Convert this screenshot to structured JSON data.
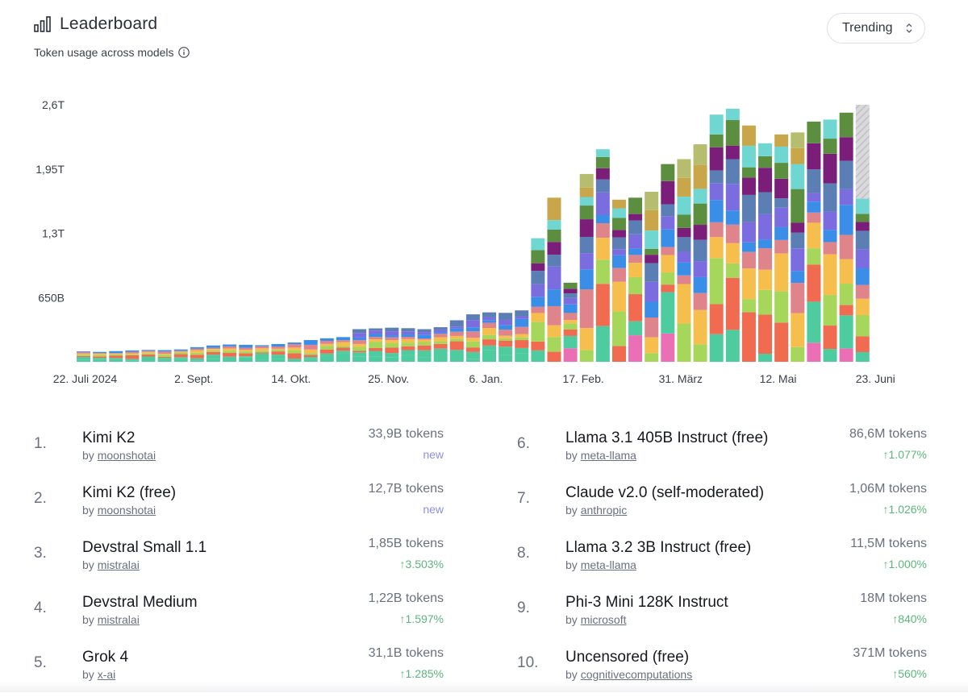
{
  "header": {
    "title": "Leaderboard",
    "subtitle": "Token usage across models",
    "icon": "bar-chart-icon",
    "info_icon": "info-icon"
  },
  "sort_select": {
    "value": "Trending"
  },
  "chart_data": {
    "type": "bar",
    "stacked": true,
    "y_tick_labels": [
      "650B",
      "1,3T",
      "1,95T",
      "2,6T"
    ],
    "y_ticks": [
      650,
      1300,
      1950,
      2600
    ],
    "ylim": [
      0,
      2600
    ],
    "value_unit": "B tokens",
    "x_tick_labels": [
      "22. Juli 2024",
      "2. Sept.",
      "14. Okt.",
      "25. Nov.",
      "6. Jan.",
      "17. Feb.",
      "31. März",
      "12. Mai",
      "23. Juni"
    ],
    "grid": false,
    "weekly_totals": [
      105,
      100,
      108,
      115,
      120,
      118,
      125,
      148,
      165,
      175,
      172,
      168,
      180,
      195,
      220,
      238,
      250,
      330,
      338,
      345,
      340,
      330,
      350,
      420,
      480,
      500,
      495,
      520,
      1250,
      1660,
      800,
      1900,
      2150,
      1640,
      1660,
      1720,
      2000,
      2050,
      2200,
      2500,
      2560,
      2390,
      2210,
      2300,
      2320,
      2430,
      2450,
      2520,
      2600
    ],
    "palette": [
      "#eb6fb4",
      "#4ecb9f",
      "#f06b50",
      "#a6d65a",
      "#f6bf4d",
      "#e0848b",
      "#3b8ee8",
      "#7b6de0",
      "#5b7fb4",
      "#7a1e7a",
      "#5b8f3f",
      "#6fd6d1",
      "#c9a64a",
      "#b6bd6f",
      "#e64c2a"
    ],
    "partial_last_week": true
  },
  "leaderboard": [
    {
      "rank": "1.",
      "name": "Kimi K2",
      "by": "by",
      "author": "moonshotai",
      "tokens": "33,9B tokens",
      "change": "new",
      "trend": "new"
    },
    {
      "rank": "2.",
      "name": "Kimi K2 (free)",
      "by": "by",
      "author": "moonshotai",
      "tokens": "12,7B tokens",
      "change": "new",
      "trend": "new"
    },
    {
      "rank": "3.",
      "name": "Devstral Small 1.1",
      "by": "by",
      "author": "mistralai",
      "tokens": "1,85B tokens",
      "change": "↑3.503%",
      "trend": "up"
    },
    {
      "rank": "4.",
      "name": "Devstral Medium",
      "by": "by",
      "author": "mistralai",
      "tokens": "1,22B tokens",
      "change": "↑1.597%",
      "trend": "up"
    },
    {
      "rank": "5.",
      "name": "Grok 4",
      "by": "by",
      "author": "x-ai",
      "tokens": "31,1B tokens",
      "change": "↑1.285%",
      "trend": "up"
    },
    {
      "rank": "6.",
      "name": "Llama 3.1 405B Instruct (free)",
      "by": "by",
      "author": "meta-llama",
      "tokens": "86,6M tokens",
      "change": "↑1.077%",
      "trend": "up"
    },
    {
      "rank": "7.",
      "name": "Claude v2.0 (self-moderated)",
      "by": "by",
      "author": "anthropic",
      "tokens": "1,06M tokens",
      "change": "↑1.026%",
      "trend": "up"
    },
    {
      "rank": "8.",
      "name": "Llama 3.2 3B Instruct (free)",
      "by": "by",
      "author": "meta-llama",
      "tokens": "11,5M tokens",
      "change": "↑1.000%",
      "trend": "up"
    },
    {
      "rank": "9.",
      "name": "Phi-3 Mini 128K Instruct",
      "by": "by",
      "author": "microsoft",
      "tokens": "18M tokens",
      "change": "↑840%",
      "trend": "up"
    },
    {
      "rank": "10.",
      "name": "Uncensored (free)",
      "by": "by",
      "author": "cognitivecomputations",
      "tokens": "371M tokens",
      "change": "↑560%",
      "trend": "up"
    }
  ]
}
